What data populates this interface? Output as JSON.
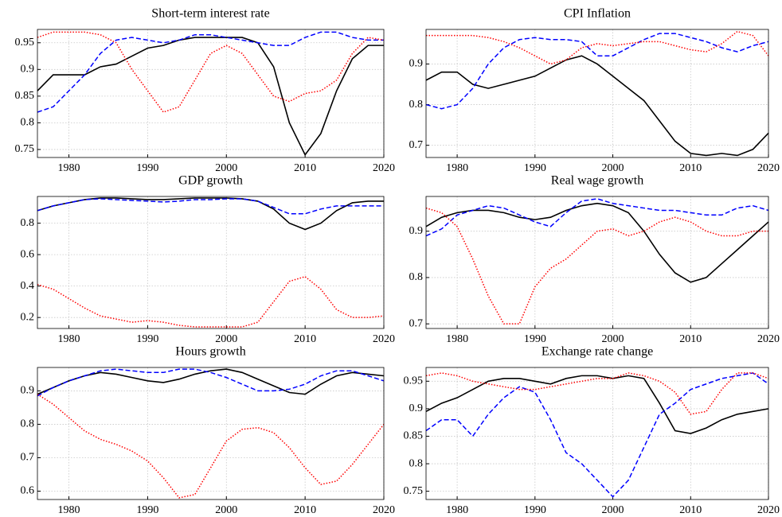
{
  "chart_data": [
    {
      "type": "line",
      "title": "Short-term interest rate",
      "x": [
        1976,
        1978,
        1980,
        1982,
        1984,
        1986,
        1988,
        1990,
        1992,
        1994,
        1996,
        1998,
        2000,
        2002,
        2004,
        2006,
        2008,
        2010,
        2012,
        2014,
        2016,
        2018,
        2020
      ],
      "xlim": [
        1976,
        2020
      ],
      "xticks": [
        1980,
        1990,
        2000,
        2010,
        2020
      ],
      "ylim": [
        0.735,
        0.975
      ],
      "yticks": [
        0.75,
        0.8,
        0.85,
        0.9,
        0.95
      ],
      "grid": true,
      "series": [
        {
          "color": "#000000",
          "line_style": "solid",
          "values": [
            0.86,
            0.89,
            0.89,
            0.89,
            0.905,
            0.91,
            0.925,
            0.94,
            0.945,
            0.955,
            0.96,
            0.96,
            0.96,
            0.96,
            0.95,
            0.905,
            0.8,
            0.74,
            0.78,
            0.86,
            0.92,
            0.945,
            0.945
          ]
        },
        {
          "color": "#0000ff",
          "line_style": "dashed",
          "values": [
            0.82,
            0.83,
            0.86,
            0.89,
            0.93,
            0.955,
            0.96,
            0.955,
            0.95,
            0.955,
            0.965,
            0.965,
            0.96,
            0.955,
            0.95,
            0.945,
            0.945,
            0.96,
            0.97,
            0.97,
            0.96,
            0.955,
            0.955
          ]
        },
        {
          "color": "#ff0000",
          "line_style": "dotted",
          "values": [
            0.96,
            0.97,
            0.97,
            0.97,
            0.965,
            0.95,
            0.9,
            0.86,
            0.82,
            0.83,
            0.88,
            0.93,
            0.945,
            0.93,
            0.89,
            0.85,
            0.84,
            0.855,
            0.86,
            0.88,
            0.93,
            0.96,
            0.955
          ]
        }
      ]
    },
    {
      "type": "line",
      "title": "CPI Inflation",
      "x": [
        1976,
        1978,
        1980,
        1982,
        1984,
        1986,
        1988,
        1990,
        1992,
        1994,
        1996,
        1998,
        2000,
        2002,
        2004,
        2006,
        2008,
        2010,
        2012,
        2014,
        2016,
        2018,
        2020
      ],
      "xlim": [
        1976,
        2020
      ],
      "xticks": [
        1980,
        1990,
        2000,
        2010,
        2020
      ],
      "ylim": [
        0.67,
        0.985
      ],
      "yticks": [
        0.7,
        0.8,
        0.9
      ],
      "grid": true,
      "series": [
        {
          "color": "#000000",
          "line_style": "solid",
          "values": [
            0.86,
            0.88,
            0.88,
            0.85,
            0.84,
            0.85,
            0.86,
            0.87,
            0.89,
            0.91,
            0.92,
            0.9,
            0.87,
            0.84,
            0.81,
            0.76,
            0.71,
            0.68,
            0.675,
            0.68,
            0.675,
            0.69,
            0.73
          ]
        },
        {
          "color": "#0000ff",
          "line_style": "dashed",
          "values": [
            0.8,
            0.79,
            0.8,
            0.84,
            0.9,
            0.94,
            0.96,
            0.965,
            0.96,
            0.96,
            0.955,
            0.92,
            0.92,
            0.94,
            0.96,
            0.975,
            0.975,
            0.965,
            0.955,
            0.94,
            0.93,
            0.945,
            0.955
          ]
        },
        {
          "color": "#ff0000",
          "line_style": "dotted",
          "values": [
            0.97,
            0.97,
            0.97,
            0.97,
            0.965,
            0.955,
            0.94,
            0.92,
            0.9,
            0.91,
            0.94,
            0.95,
            0.945,
            0.95,
            0.955,
            0.955,
            0.945,
            0.935,
            0.93,
            0.95,
            0.98,
            0.97,
            0.92
          ]
        }
      ]
    },
    {
      "type": "line",
      "title": "GDP growth",
      "x": [
        1976,
        1978,
        1980,
        1982,
        1984,
        1986,
        1988,
        1990,
        1992,
        1994,
        1996,
        1998,
        2000,
        2002,
        2004,
        2006,
        2008,
        2010,
        2012,
        2014,
        2016,
        2018,
        2020
      ],
      "xlim": [
        1976,
        2020
      ],
      "xticks": [
        1980,
        1990,
        2000,
        2010,
        2020
      ],
      "ylim": [
        0.13,
        0.97
      ],
      "yticks": [
        0.2,
        0.4,
        0.6,
        0.8
      ],
      "grid": true,
      "series": [
        {
          "color": "#000000",
          "line_style": "solid",
          "values": [
            0.88,
            0.91,
            0.93,
            0.95,
            0.96,
            0.96,
            0.955,
            0.95,
            0.95,
            0.955,
            0.96,
            0.96,
            0.96,
            0.955,
            0.94,
            0.89,
            0.8,
            0.76,
            0.8,
            0.88,
            0.93,
            0.94,
            0.94
          ]
        },
        {
          "color": "#0000ff",
          "line_style": "dashed",
          "values": [
            0.88,
            0.91,
            0.93,
            0.95,
            0.955,
            0.95,
            0.945,
            0.94,
            0.935,
            0.94,
            0.95,
            0.95,
            0.955,
            0.955,
            0.94,
            0.9,
            0.86,
            0.86,
            0.89,
            0.91,
            0.91,
            0.91,
            0.91
          ]
        },
        {
          "color": "#ff0000",
          "line_style": "dotted",
          "values": [
            0.41,
            0.38,
            0.32,
            0.26,
            0.21,
            0.19,
            0.17,
            0.18,
            0.17,
            0.15,
            0.14,
            0.14,
            0.14,
            0.14,
            0.17,
            0.3,
            0.43,
            0.46,
            0.38,
            0.25,
            0.2,
            0.2,
            0.21
          ]
        }
      ]
    },
    {
      "type": "line",
      "title": "Real wage growth",
      "x": [
        1976,
        1978,
        1980,
        1982,
        1984,
        1986,
        1988,
        1990,
        1992,
        1994,
        1996,
        1998,
        2000,
        2002,
        2004,
        2006,
        2008,
        2010,
        2012,
        2014,
        2016,
        2018,
        2020
      ],
      "xlim": [
        1976,
        2020
      ],
      "xticks": [
        1980,
        1990,
        2000,
        2010,
        2020
      ],
      "ylim": [
        0.69,
        0.975
      ],
      "yticks": [
        0.7,
        0.8,
        0.9
      ],
      "grid": true,
      "series": [
        {
          "color": "#000000",
          "line_style": "solid",
          "values": [
            0.91,
            0.93,
            0.94,
            0.945,
            0.945,
            0.94,
            0.93,
            0.925,
            0.93,
            0.945,
            0.955,
            0.96,
            0.955,
            0.94,
            0.9,
            0.85,
            0.81,
            0.79,
            0.8,
            0.83,
            0.86,
            0.89,
            0.92
          ]
        },
        {
          "color": "#0000ff",
          "line_style": "dashed",
          "values": [
            0.89,
            0.905,
            0.935,
            0.945,
            0.955,
            0.95,
            0.935,
            0.92,
            0.91,
            0.94,
            0.965,
            0.97,
            0.96,
            0.955,
            0.95,
            0.945,
            0.945,
            0.94,
            0.935,
            0.935,
            0.95,
            0.955,
            0.945
          ]
        },
        {
          "color": "#ff0000",
          "line_style": "dotted",
          "values": [
            0.95,
            0.94,
            0.91,
            0.84,
            0.76,
            0.7,
            0.7,
            0.78,
            0.82,
            0.84,
            0.87,
            0.9,
            0.905,
            0.89,
            0.9,
            0.92,
            0.93,
            0.92,
            0.9,
            0.89,
            0.89,
            0.9,
            0.9
          ]
        }
      ]
    },
    {
      "type": "line",
      "title": "Hours growth",
      "x": [
        1976,
        1978,
        1980,
        1982,
        1984,
        1986,
        1988,
        1990,
        1992,
        1994,
        1996,
        1998,
        2000,
        2002,
        2004,
        2006,
        2008,
        2010,
        2012,
        2014,
        2016,
        2018,
        2020
      ],
      "xlim": [
        1976,
        2020
      ],
      "xticks": [
        1980,
        1990,
        2000,
        2010,
        2020
      ],
      "ylim": [
        0.575,
        0.97
      ],
      "yticks": [
        0.6,
        0.7,
        0.8,
        0.9
      ],
      "grid": true,
      "series": [
        {
          "color": "#000000",
          "line_style": "solid",
          "values": [
            0.89,
            0.91,
            0.93,
            0.945,
            0.955,
            0.95,
            0.94,
            0.93,
            0.925,
            0.935,
            0.95,
            0.96,
            0.965,
            0.955,
            0.935,
            0.915,
            0.895,
            0.89,
            0.92,
            0.945,
            0.955,
            0.95,
            0.945
          ]
        },
        {
          "color": "#0000ff",
          "line_style": "dashed",
          "values": [
            0.885,
            0.91,
            0.93,
            0.945,
            0.96,
            0.965,
            0.96,
            0.955,
            0.955,
            0.965,
            0.965,
            0.955,
            0.94,
            0.92,
            0.9,
            0.9,
            0.905,
            0.92,
            0.945,
            0.96,
            0.96,
            0.945,
            0.93
          ]
        },
        {
          "color": "#ff0000",
          "line_style": "dotted",
          "values": [
            0.89,
            0.86,
            0.82,
            0.78,
            0.755,
            0.74,
            0.72,
            0.69,
            0.64,
            0.58,
            0.59,
            0.67,
            0.75,
            0.785,
            0.79,
            0.775,
            0.73,
            0.67,
            0.62,
            0.63,
            0.68,
            0.74,
            0.8
          ]
        }
      ]
    },
    {
      "type": "line",
      "title": "Exchange rate change",
      "x": [
        1976,
        1978,
        1980,
        1982,
        1984,
        1986,
        1988,
        1990,
        1992,
        1994,
        1996,
        1998,
        2000,
        2002,
        2004,
        2006,
        2008,
        2010,
        2012,
        2014,
        2016,
        2018,
        2020
      ],
      "xlim": [
        1976,
        2020
      ],
      "xticks": [
        1980,
        1990,
        2000,
        2010,
        2020
      ],
      "ylim": [
        0.735,
        0.975
      ],
      "yticks": [
        0.75,
        0.8,
        0.85,
        0.9,
        0.95
      ],
      "grid": true,
      "series": [
        {
          "color": "#000000",
          "line_style": "solid",
          "values": [
            0.895,
            0.91,
            0.92,
            0.935,
            0.95,
            0.955,
            0.955,
            0.95,
            0.945,
            0.955,
            0.96,
            0.96,
            0.955,
            0.96,
            0.955,
            0.91,
            0.86,
            0.855,
            0.865,
            0.88,
            0.89,
            0.895,
            0.9
          ]
        },
        {
          "color": "#0000ff",
          "line_style": "dashed",
          "values": [
            0.86,
            0.88,
            0.88,
            0.85,
            0.89,
            0.92,
            0.94,
            0.93,
            0.88,
            0.82,
            0.8,
            0.77,
            0.74,
            0.77,
            0.83,
            0.89,
            0.91,
            0.935,
            0.945,
            0.955,
            0.96,
            0.965,
            0.945
          ]
        },
        {
          "color": "#ff0000",
          "line_style": "dotted",
          "values": [
            0.96,
            0.965,
            0.96,
            0.95,
            0.945,
            0.94,
            0.935,
            0.935,
            0.94,
            0.945,
            0.95,
            0.955,
            0.955,
            0.965,
            0.96,
            0.95,
            0.93,
            0.89,
            0.895,
            0.935,
            0.965,
            0.965,
            0.955
          ]
        }
      ]
    }
  ]
}
